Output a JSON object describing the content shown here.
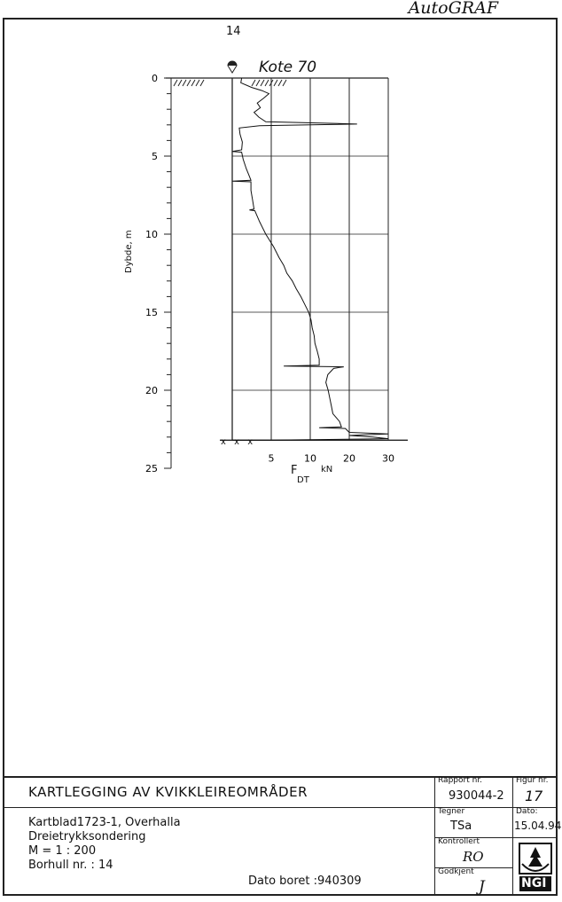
{
  "watermark": "AutoGRAF",
  "borehole_label": "14",
  "elevation_note": "Kote 70",
  "chart_data": {
    "type": "line",
    "title": "",
    "ylabel": "Dybde, m",
    "xlabel": "F",
    "xlabel_sub": "DT",
    "xunit": "kN",
    "ylim": [
      0,
      25
    ],
    "y_inverted": true,
    "yticks": [
      "0",
      "5",
      "10",
      "15",
      "20",
      "25"
    ],
    "xticks": [
      "5",
      "10",
      "20",
      "30"
    ],
    "x_scale": "piecewise: 0-10 linear, 10-30 compressed to half scale",
    "grid": true,
    "stop_marks": "x x x",
    "points": [
      [
        0,
        1.2
      ],
      [
        0.3,
        1.1
      ],
      [
        0.6,
        2.5
      ],
      [
        0.8,
        3.8
      ],
      [
        1.0,
        4.7
      ],
      [
        1.3,
        4.0
      ],
      [
        1.6,
        3.2
      ],
      [
        1.9,
        3.6
      ],
      [
        2.2,
        2.8
      ],
      [
        2.5,
        3.4
      ],
      [
        2.8,
        4.3
      ],
      [
        2.9,
        15
      ],
      [
        2.95,
        22
      ],
      [
        3.0,
        10
      ],
      [
        3.05,
        3.5
      ],
      [
        3.2,
        0.9
      ],
      [
        3.6,
        1.0
      ],
      [
        4.1,
        1.3
      ],
      [
        4.6,
        1.2
      ],
      [
        4.7,
        0
      ],
      [
        4.75,
        1.2
      ],
      [
        5.2,
        1.4
      ],
      [
        5.8,
        1.8
      ],
      [
        6.3,
        2.2
      ],
      [
        6.55,
        2.4
      ],
      [
        6.6,
        0
      ],
      [
        6.65,
        2.4
      ],
      [
        7.2,
        2.4
      ],
      [
        7.8,
        2.6
      ],
      [
        8.4,
        2.8
      ],
      [
        8.45,
        2.2
      ],
      [
        8.5,
        2.9
      ],
      [
        9.2,
        3.5
      ],
      [
        10,
        4.3
      ],
      [
        10.8,
        5.3
      ],
      [
        11.5,
        6.0
      ],
      [
        12,
        6.6
      ],
      [
        12.5,
        7.0
      ],
      [
        13,
        7.7
      ],
      [
        13.5,
        8.2
      ],
      [
        14,
        8.8
      ],
      [
        14.5,
        9.3
      ],
      [
        15,
        9.8
      ],
      [
        15.5,
        10.2
      ],
      [
        16,
        10.5
      ],
      [
        16.5,
        11
      ],
      [
        17,
        11.2
      ],
      [
        17.5,
        11.8
      ],
      [
        18,
        12.3
      ],
      [
        18.4,
        12.3
      ],
      [
        18.45,
        6.6
      ],
      [
        18.5,
        18.6
      ],
      [
        18.6,
        16
      ],
      [
        19,
        14.5
      ],
      [
        19.5,
        14
      ],
      [
        20,
        14.6
      ],
      [
        20.5,
        15
      ],
      [
        21,
        15.4
      ],
      [
        21.5,
        15.8
      ],
      [
        22,
        17.5
      ],
      [
        22.35,
        18
      ],
      [
        22.4,
        12.3
      ],
      [
        22.45,
        19
      ],
      [
        22.7,
        20
      ],
      [
        22.8,
        30
      ],
      [
        22.9,
        20
      ],
      [
        23.0,
        26
      ],
      [
        23.1,
        30
      ],
      [
        23.2,
        5
      ],
      [
        23.2,
        0
      ]
    ]
  },
  "title_block": {
    "project": "KARTLEGGING AV KVIKKLEIREOMRÅDER",
    "lines": [
      "Kartblad1723-1, Overhalla",
      "Dreietrykksondering",
      "M = 1 : 200",
      "Borhull nr. : 14"
    ],
    "date_drilled": "Dato boret :940309",
    "rapport_label": "Rapport nr.",
    "rapport_value": "930044-2",
    "figur_label": "Figur nr.",
    "figur_value": "17",
    "tegner_label": "Tegner",
    "tegner_value": "TSa",
    "dato_label": "Dato:",
    "dato_value": "15.04.94",
    "kontrollert_label": "Kontrollert",
    "kontrollert_value": "RO",
    "godkjent_label": "Godkjent",
    "godkjent_value": "J",
    "logo": "NGI"
  }
}
